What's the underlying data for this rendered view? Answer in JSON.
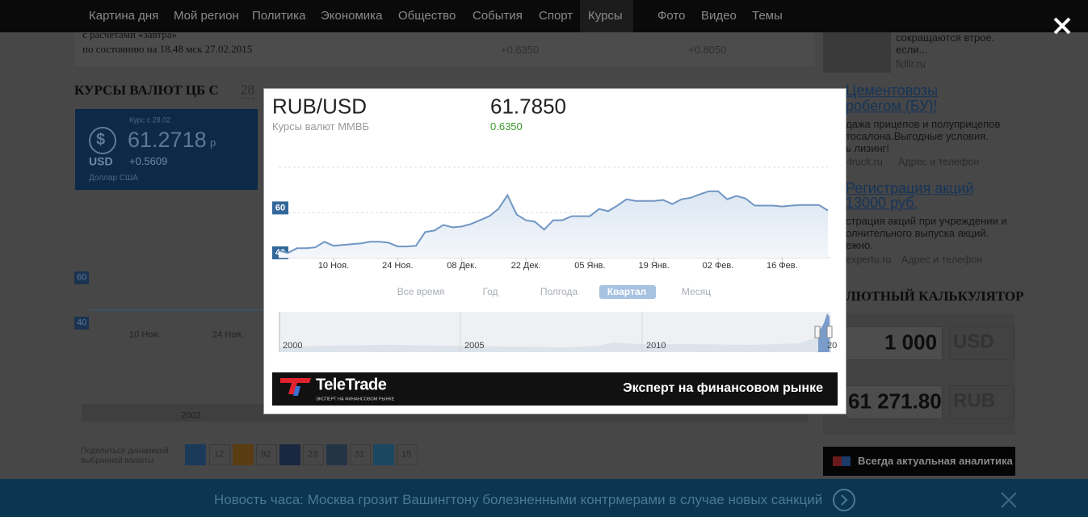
{
  "nav": [
    "Картина дня",
    "Мой регион",
    "Политика",
    "Экономика",
    "Общество",
    "События",
    "Спорт",
    "Курсы",
    "Фото",
    "Видео",
    "Темы"
  ],
  "left": {
    "note1": "с расчетами «завтра»",
    "note2": "по состоянию на 18.48 мск 27.02.2015",
    "change_a": "+0.6350",
    "change_b": "+0.8050",
    "heading": "КУРСЫ ВАЛЮТ ЦБ  С",
    "heading_date": "28",
    "card": {
      "icon": "$",
      "since": "Курс с 28.02",
      "rate": "61.2718",
      "unit": "р",
      "code": "USD",
      "change": "+0.5609",
      "name": "Доллар США"
    },
    "bg_ticks": [
      "60",
      "40"
    ],
    "bg_dates": [
      "10 Ноя.",
      "24 Ноя."
    ],
    "bg_year": "2002",
    "share": [
      "Поделиться динамикой",
      "выбранной валюты"
    ],
    "share_counts": [
      "12",
      "92",
      "23",
      "31",
      "15"
    ]
  },
  "right": {
    "ad1": [
      "сокращаются втрое.",
      "если...",
      "fidlir.ru"
    ],
    "ad2": {
      "title": [
        "Цементовозы",
        "робегом (БУ)!"
      ],
      "text": [
        "дажа прицепов и полуприцепов",
        "тосалона.Выгодные условия.",
        "ь лизинг!"
      ],
      "site": "-truck.ru",
      "contact": "Адрес и телефон"
    },
    "ad3": {
      "title": [
        "Регистрация акций",
        "13000 руб."
      ],
      "text": [
        "страция акций при учреждении и",
        "олнительного выпуска акций.",
        "ежно."
      ],
      "site": "expertu.ru",
      "contact": "Адрес и телефон"
    },
    "calc": {
      "title": "ЛЮТНЫЙ КАЛЬКУЛЯТОР",
      "amount": "1 000",
      "from": "USD",
      "result": "61 271.80",
      "to": "RUB"
    },
    "promo": "Всегда актуальная аналитика"
  },
  "news": "Новость часа: Москва грозит Вашингтону болезненными контрмерами в случае новых санкций",
  "modal": {
    "pair": "RUB/USD",
    "source": "Курсы валют ММВБ",
    "price": "61.7850",
    "change": "0.6350",
    "ranges": [
      "Все время",
      "Год",
      "Полгода",
      "Квартал",
      "Месяц"
    ],
    "navigator_years": [
      "2000",
      "2005",
      "2010",
      "20"
    ],
    "banner": {
      "brand": "TeleTrade",
      "brand_caption": "ЭКСПЕРТ НА ФИНАНСОВОМ РЫНКЕ",
      "slogan": "Эксперт на финансовом рынке"
    }
  },
  "chart_data": {
    "type": "line",
    "categories": [
      null,
      null,
      null,
      null,
      null,
      null,
      "10 Ноя.",
      null,
      null,
      null,
      null,
      null,
      null,
      "24 Ноя.",
      null,
      null,
      null,
      null,
      null,
      null,
      "08 Дек.",
      null,
      null,
      null,
      null,
      null,
      null,
      "22 Дек.",
      null,
      null,
      null,
      null,
      null,
      null,
      "05 Янв.",
      null,
      null,
      null,
      null,
      null,
      null,
      "19 Янв.",
      null,
      null,
      null,
      null,
      null,
      null,
      "02 Фев.",
      null,
      null,
      null,
      null,
      null,
      null,
      "16 Фев.",
      null,
      null,
      null,
      null,
      null
    ],
    "values": [
      43.2,
      42.1,
      44.2,
      44.2,
      44.6,
      47.1,
      45.3,
      45.7,
      46.0,
      46.4,
      47.1,
      47.1,
      46.7,
      45.0,
      45.0,
      45.3,
      51.4,
      52.1,
      54.6,
      53.5,
      53.9,
      55.0,
      56.7,
      58.5,
      61.7,
      67.8,
      59.2,
      56.7,
      56.0,
      52.5,
      56.7,
      56.7,
      58.5,
      58.5,
      58.5,
      61.7,
      60.7,
      63.2,
      66.0,
      65.3,
      65.3,
      65.3,
      65.7,
      63.9,
      66.0,
      66.7,
      68.2,
      69.6,
      69.6,
      66.0,
      67.5,
      66.4,
      63.2,
      63.2,
      63.2,
      62.8,
      63.2,
      63.5,
      63.5,
      63.5,
      61.0
    ],
    "color": "#7096c3",
    "ylim": [
      40,
      81
    ],
    "yticks": [
      40,
      60
    ],
    "grid": true
  }
}
